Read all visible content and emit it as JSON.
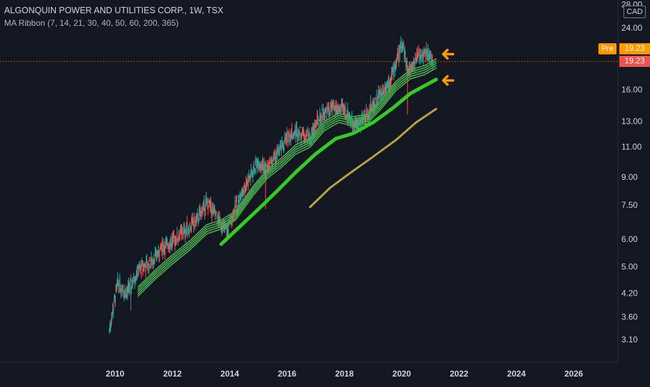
{
  "header": {
    "title": "ALGONQUIN POWER AND UTILITIES CORP., 1W, TSX",
    "indicator": "MA Ribbon (7, 14, 21, 30, 40, 50, 60, 200, 365)"
  },
  "price_scale": {
    "currency": "CAD",
    "pre_label": "Pre",
    "pre_price": "19.23",
    "last_price": "19.23"
  },
  "colors": {
    "background": "#131722",
    "up_candle": "#26a69a",
    "down_candle": "#ef5350",
    "ma_ribbon_short": "#4caf50",
    "ma_200": "#33cc22",
    "ma_365": "#b5a642",
    "arrow": "#ff9800",
    "price_line": "#ff9800",
    "axis_text": "#d1d4dc"
  },
  "chart_data": {
    "type": "candlestick",
    "scale": "log",
    "yticks": [
      "3.10",
      "3.60",
      "4.20",
      "5.00",
      "6.00",
      "7.50",
      "9.00",
      "11.00",
      "13.00",
      "16.00",
      "19.23",
      "24.00",
      "28.00"
    ],
    "xticks": [
      "2010",
      "2012",
      "2014",
      "2016",
      "2018",
      "2020",
      "2022",
      "2024",
      "2026"
    ],
    "ylim": [
      2.6,
      28
    ],
    "xlim": [
      2008.6,
      2027.5
    ],
    "price_path": {
      "x": [
        2009.8,
        2010.1,
        2010.4,
        2010.8,
        2011.2,
        2011.6,
        2012.0,
        2012.4,
        2012.8,
        2013.2,
        2013.5,
        2013.9,
        2014.2,
        2014.6,
        2015.0,
        2015.3,
        2015.7,
        2016.1,
        2016.4,
        2016.8,
        2017.2,
        2017.6,
        2018.0,
        2018.4,
        2018.8,
        2019.2,
        2019.6,
        2019.9,
        2020.05,
        2020.2,
        2020.5,
        2020.8,
        2021.1
      ],
      "y": [
        3.3,
        4.5,
        4.2,
        4.9,
        5.1,
        5.6,
        5.9,
        6.3,
        6.7,
        7.6,
        7.0,
        6.3,
        7.4,
        8.7,
        10.0,
        9.5,
        10.6,
        11.9,
        12.2,
        11.7,
        13.6,
        14.2,
        14.0,
        12.6,
        13.6,
        15.4,
        17.0,
        20.3,
        21.8,
        18.0,
        19.6,
        20.5,
        19.3
      ]
    },
    "series": [
      {
        "name": "MA 7-60",
        "x": [
          2010.8,
          2011.4,
          2012.0,
          2012.6,
          2013.2,
          2013.7,
          2014.2,
          2014.8,
          2015.3,
          2015.8,
          2016.3,
          2016.8,
          2017.3,
          2017.8,
          2018.3,
          2018.8,
          2019.3,
          2019.8,
          2020.3,
          2020.8,
          2021.2
        ],
        "y": [
          4.25,
          4.75,
          5.25,
          5.75,
          6.4,
          6.6,
          7.0,
          8.2,
          9.2,
          9.9,
          10.8,
          11.3,
          12.6,
          13.3,
          13.0,
          13.2,
          14.6,
          16.4,
          17.7,
          18.2,
          19.0
        ]
      },
      {
        "name": "MA 200",
        "x": [
          2013.7,
          2014.3,
          2015.0,
          2015.7,
          2016.3,
          2017.0,
          2017.7,
          2018.3,
          2019.0,
          2019.7,
          2020.3,
          2021.2
        ],
        "y": [
          5.8,
          6.45,
          7.3,
          8.3,
          9.3,
          10.5,
          11.6,
          12.0,
          12.9,
          14.2,
          15.6,
          17.1
        ]
      },
      {
        "name": "MA 365",
        "x": [
          2016.8,
          2017.5,
          2018.2,
          2019.0,
          2019.8,
          2020.5,
          2021.2
        ],
        "y": [
          7.4,
          8.4,
          9.25,
          10.3,
          11.5,
          12.9,
          14.1
        ]
      }
    ],
    "price_line_value": 19.23,
    "arrows": [
      {
        "x": 2021.4,
        "y": 20.2
      },
      {
        "x": 2021.4,
        "y": 17.0
      }
    ],
    "grid": false
  }
}
